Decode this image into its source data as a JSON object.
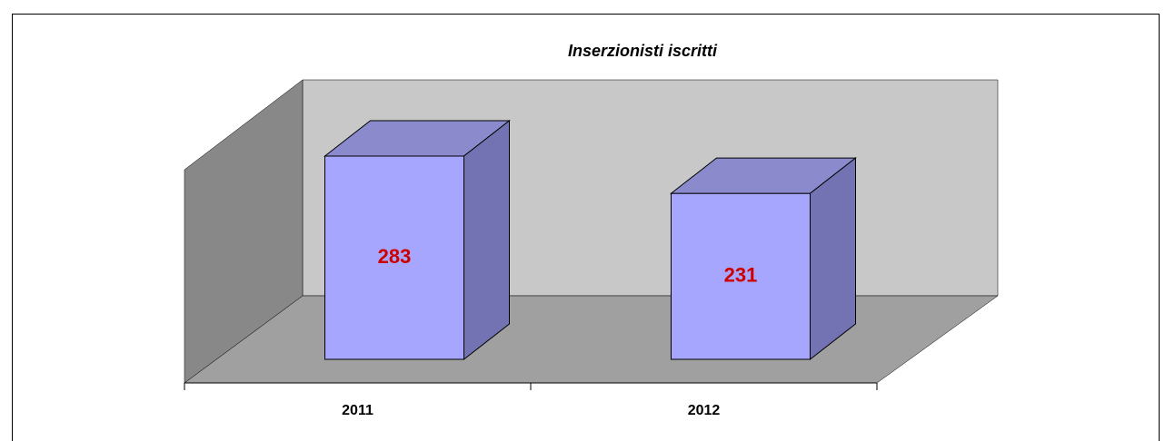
{
  "chart_data": {
    "type": "bar3d",
    "title": "Inserzionisti iscritti",
    "categories": [
      "2011",
      "2012"
    ],
    "values": [
      283,
      231
    ],
    "color": "#a6a6ff",
    "label_color": "#cc0000"
  }
}
